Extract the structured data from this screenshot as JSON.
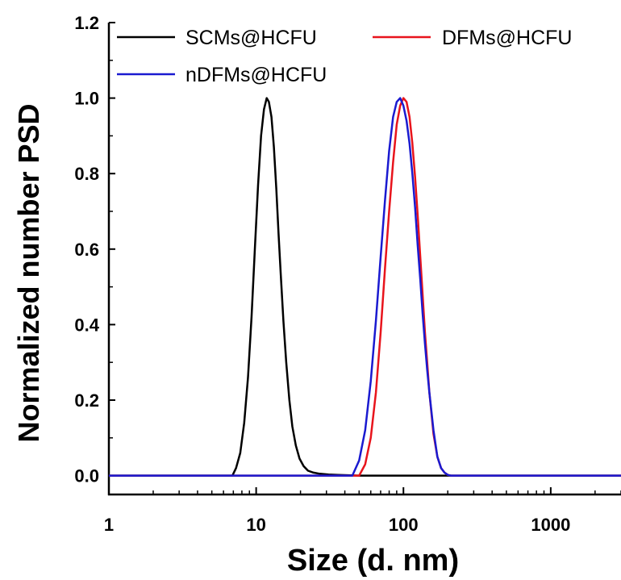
{
  "chart_data": {
    "type": "line",
    "xlabel": "Size (d. nm)",
    "ylabel": "Normalized number PSD",
    "xscale": "log",
    "xlim": [
      1,
      3000
    ],
    "ylim": [
      -0.05,
      1.2
    ],
    "xticks": [
      1,
      10,
      100,
      1000
    ],
    "xtick_labels": [
      "1",
      "10",
      "100",
      "1000"
    ],
    "yticks": [
      0.0,
      0.2,
      0.4,
      0.6,
      0.8,
      1.0,
      1.2
    ],
    "ytick_labels": [
      "0.0",
      "0.2",
      "0.4",
      "0.6",
      "0.8",
      "1.0",
      "1.2"
    ],
    "grid": false,
    "legend_position": "top",
    "series": [
      {
        "name": "SCMs@HCFU",
        "color": "#000000",
        "x": [
          1,
          6.9,
          7.3,
          7.8,
          8.3,
          8.8,
          9.3,
          9.8,
          10.3,
          10.8,
          11.3,
          11.8,
          12.2,
          12.7,
          13.2,
          13.7,
          14.2,
          14.7,
          15.3,
          16.0,
          16.8,
          17.6,
          18.6,
          19.7,
          21,
          22.5,
          24.5,
          27,
          31,
          36,
          42,
          50,
          3000
        ],
        "y": [
          0,
          0,
          0.02,
          0.06,
          0.14,
          0.26,
          0.42,
          0.6,
          0.77,
          0.9,
          0.97,
          1.0,
          0.99,
          0.95,
          0.87,
          0.76,
          0.64,
          0.53,
          0.41,
          0.3,
          0.2,
          0.13,
          0.08,
          0.045,
          0.025,
          0.013,
          0.008,
          0.005,
          0.003,
          0.002,
          0.001,
          0,
          0
        ]
      },
      {
        "name": "DFMs@HCFU",
        "color": "#e8141c",
        "x": [
          1,
          50,
          55,
          60,
          65,
          70,
          75,
          80,
          85,
          90,
          95,
          100,
          105,
          110,
          115,
          120,
          125,
          130,
          135,
          140,
          145,
          150,
          160,
          170,
          180,
          190,
          200,
          210,
          3000
        ],
        "y": [
          0,
          0,
          0.03,
          0.1,
          0.22,
          0.38,
          0.55,
          0.7,
          0.83,
          0.93,
          0.98,
          1.0,
          0.99,
          0.95,
          0.88,
          0.79,
          0.69,
          0.58,
          0.48,
          0.38,
          0.3,
          0.22,
          0.11,
          0.05,
          0.02,
          0.008,
          0.002,
          0,
          0
        ]
      },
      {
        "name": "nDFMs@HCFU",
        "color": "#1a1ad0",
        "x": [
          1,
          45,
          50,
          55,
          60,
          65,
          70,
          75,
          80,
          85,
          90,
          95,
          100,
          105,
          110,
          115,
          120,
          125,
          130,
          135,
          140,
          145,
          150,
          160,
          170,
          180,
          190,
          200,
          210,
          3000
        ],
        "y": [
          0,
          0,
          0.04,
          0.12,
          0.25,
          0.41,
          0.58,
          0.73,
          0.86,
          0.95,
          0.99,
          1.0,
          0.98,
          0.94,
          0.88,
          0.8,
          0.71,
          0.61,
          0.52,
          0.43,
          0.35,
          0.28,
          0.22,
          0.12,
          0.05,
          0.02,
          0.008,
          0.002,
          0,
          0
        ]
      }
    ]
  }
}
